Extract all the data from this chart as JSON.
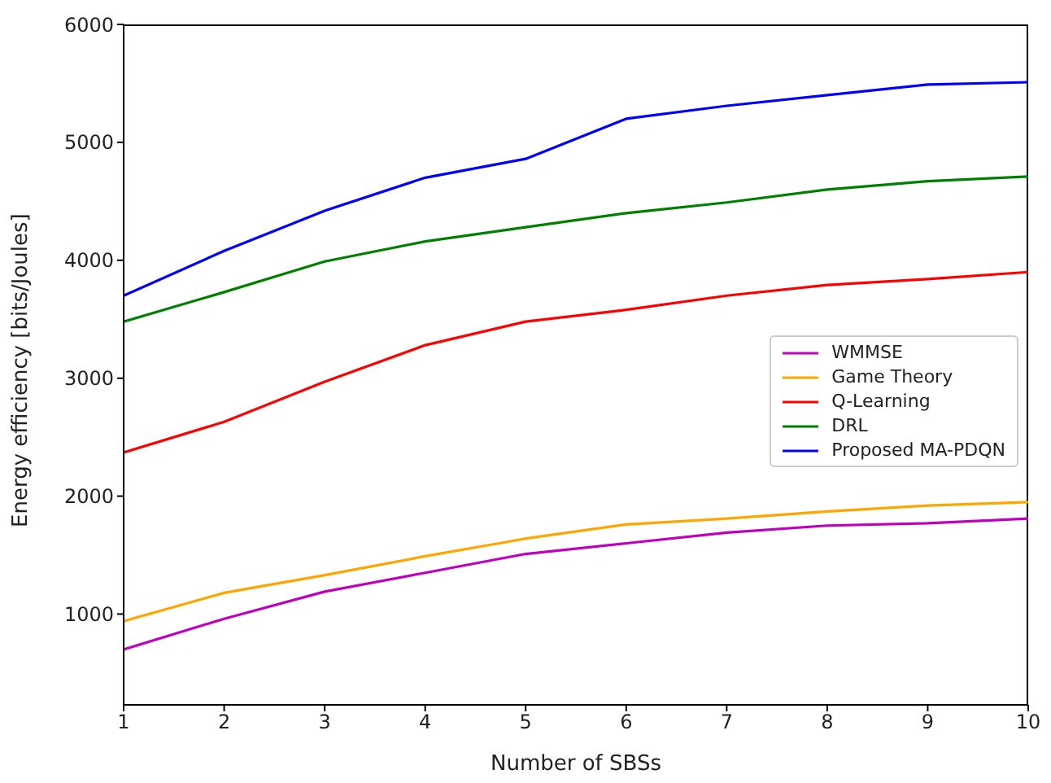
{
  "chart_data": {
    "type": "line",
    "xlabel": "Number of SBSs",
    "ylabel": "Energy efficiency [bits/Joules]",
    "x": [
      1,
      2,
      3,
      4,
      5,
      6,
      7,
      8,
      9,
      10
    ],
    "xlim": [
      1,
      10
    ],
    "xticks": [
      1,
      2,
      3,
      4,
      5,
      6,
      7,
      8,
      9,
      10
    ],
    "ylim": [
      230,
      6000
    ],
    "yticks": [
      1000,
      2000,
      3000,
      4000,
      5000,
      6000
    ],
    "grid": false,
    "legend": "right",
    "marker": "none",
    "line_style": "solid",
    "series": [
      {
        "name": "WMMSE",
        "color": "#bf00bf",
        "values": [
          700,
          960,
          1190,
          1350,
          1510,
          1600,
          1690,
          1750,
          1770,
          1810
        ]
      },
      {
        "name": "Game Theory",
        "color": "#ffa500",
        "values": [
          940,
          1180,
          1330,
          1490,
          1640,
          1760,
          1810,
          1870,
          1920,
          1950
        ]
      },
      {
        "name": "Q-Learning",
        "color": "#ff0000",
        "values": [
          2370,
          2630,
          2970,
          3280,
          3480,
          3580,
          3700,
          3790,
          3840,
          3900
        ]
      },
      {
        "name": "DRL",
        "color": "#008000",
        "values": [
          3480,
          3730,
          3990,
          4160,
          4280,
          4400,
          4490,
          4600,
          4670,
          4710
        ]
      },
      {
        "name": "Proposed MA-PDQN",
        "color": "#0000ff",
        "values": [
          3700,
          4080,
          4420,
          4700,
          4860,
          5200,
          5310,
          5400,
          5490,
          5510
        ]
      }
    ]
  }
}
